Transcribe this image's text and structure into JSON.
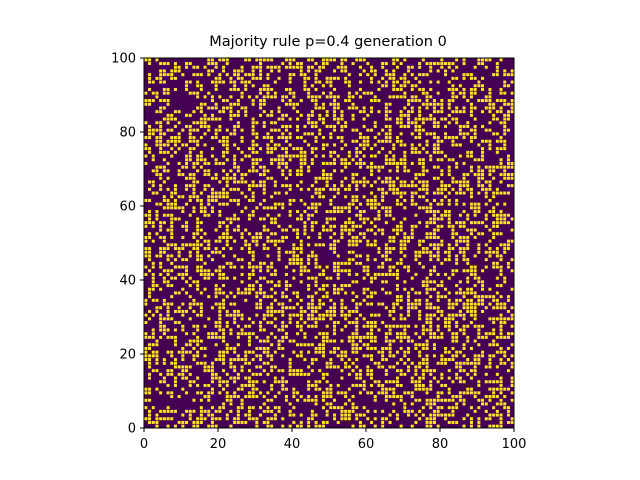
{
  "chart_data": {
    "type": "heatmap",
    "title": "Majority rule p=0.4 generation 0",
    "xlabel": "",
    "ylabel": "",
    "grid_size": 100,
    "p": 0.4,
    "generation": 0,
    "xlim": [
      0,
      100
    ],
    "ylim": [
      0,
      100
    ],
    "x_ticks": [
      "0",
      "20",
      "40",
      "60",
      "80",
      "100"
    ],
    "y_ticks": [
      "0",
      "20",
      "40",
      "60",
      "80",
      "100"
    ],
    "grid": false,
    "legend": "none",
    "colors": {
      "state_0": "#440154",
      "state_1": "#fde725",
      "cell_edge": "#2a0a35"
    }
  }
}
